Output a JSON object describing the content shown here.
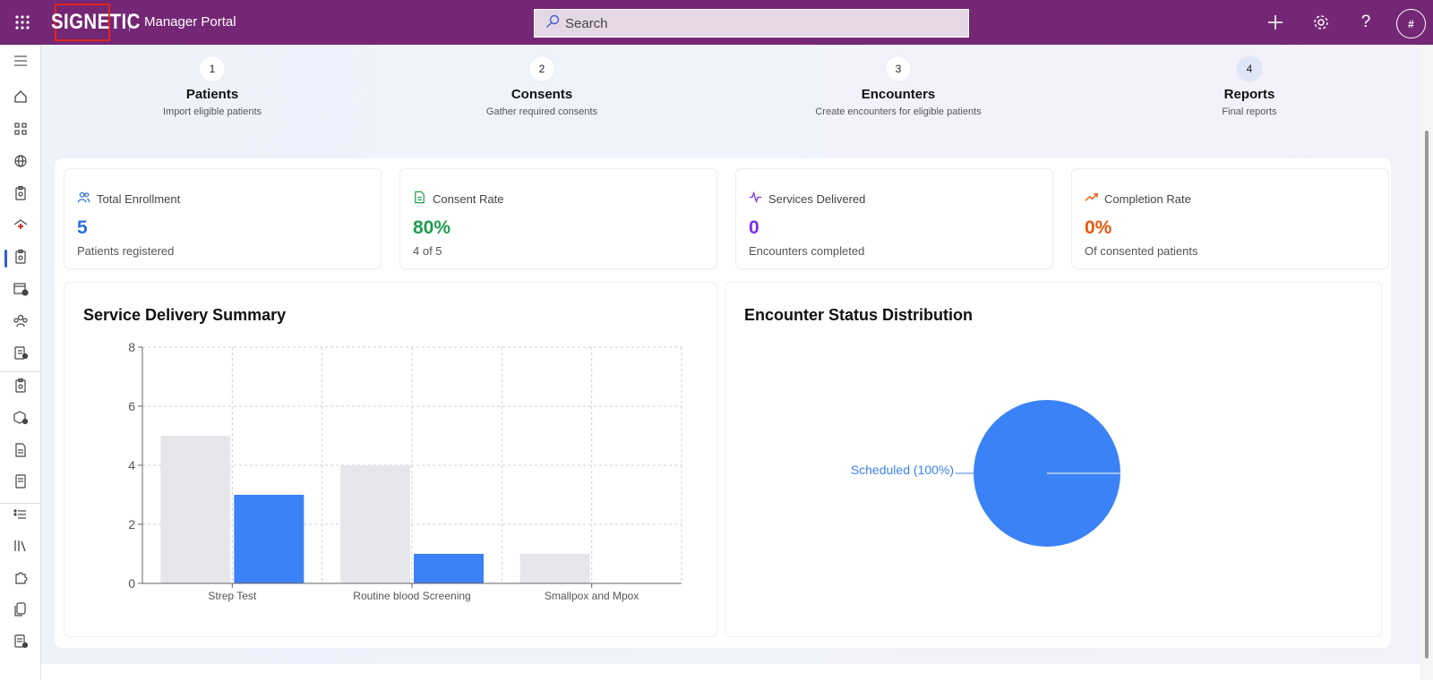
{
  "header": {
    "logo_text": "SIGNETIC",
    "app_title": "Manager Portal",
    "search_placeholder": "Search",
    "avatar_initial": "#"
  },
  "sidebar": {
    "icons": [
      "menu-icon",
      "home-icon",
      "apps-icon",
      "globe-icon",
      "clipboard-icon",
      "clinic-icon",
      "clipboard-check-icon",
      "calendar-icon",
      "people-icon",
      "task-icon",
      "clipboard-icon",
      "package-icon",
      "document-icon",
      "form-icon",
      "list-icon",
      "library-icon",
      "puzzle-icon",
      "copy-icon",
      "report-icon"
    ],
    "active_index": 6
  },
  "steps": [
    {
      "number": "1",
      "title": "Patients",
      "subtitle": "Import eligible patients"
    },
    {
      "number": "2",
      "title": "Consents",
      "subtitle": "Gather required consents"
    },
    {
      "number": "3",
      "title": "Encounters",
      "subtitle": "Create encounters for eligible patients"
    },
    {
      "number": "4",
      "title": "Reports",
      "subtitle": "Final reports"
    }
  ],
  "stats": [
    {
      "label": "Total Enrollment",
      "value": "5",
      "sub": "Patients registered",
      "color": "#2f6fe0",
      "icon": "people-icon"
    },
    {
      "label": "Consent Rate",
      "value": "80%",
      "sub": "4 of 5",
      "color": "#1f9d4d",
      "icon": "document-icon"
    },
    {
      "label": "Services Delivered",
      "value": "0",
      "sub": "Encounters completed",
      "color": "#7b2cf0",
      "icon": "activity-icon"
    },
    {
      "label": "Completion Rate",
      "value": "0%",
      "sub": "Of consented patients",
      "color": "#ea580c",
      "icon": "trending-up-icon"
    }
  ],
  "bar_card": {
    "title": "Service Delivery Summary"
  },
  "pie_card": {
    "title": "Encounter Status Distribution"
  },
  "chart_data": [
    {
      "type": "bar",
      "title": "Service Delivery Summary",
      "categories": [
        "Strep Test",
        "Routine blood Screening",
        "Smallpox and Mpox"
      ],
      "series": [
        {
          "color": "#e5e7eb",
          "values": [
            5,
            4,
            1
          ]
        },
        {
          "color": "#3b82f6",
          "values": [
            3,
            1,
            0
          ]
        }
      ],
      "yticks": [
        "0",
        "2",
        "4",
        "6",
        "8"
      ],
      "ylim": [
        0,
        8
      ],
      "grid": true
    },
    {
      "type": "pie",
      "title": "Encounter Status Distribution",
      "slices": [
        {
          "label": "Scheduled",
          "value": 100,
          "display": "Scheduled (100%)",
          "color": "#3b82f6"
        }
      ]
    }
  ]
}
